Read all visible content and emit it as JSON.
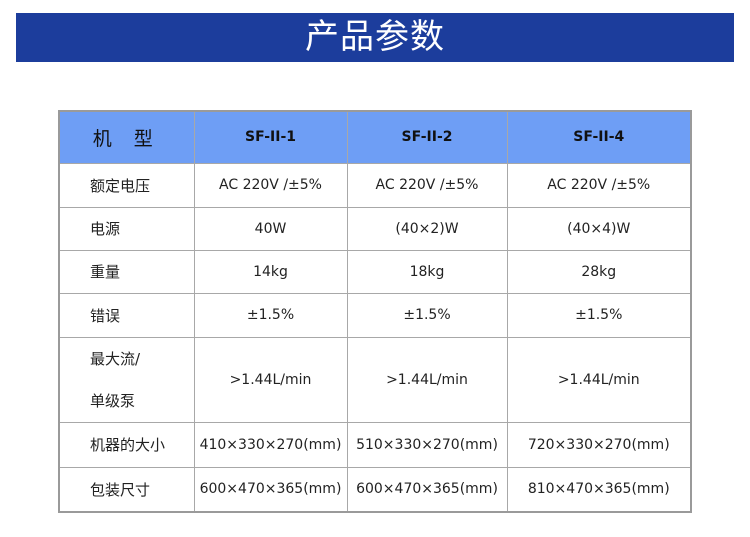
{
  "title": "产品参数",
  "table": {
    "header": [
      "机 型",
      "SF-II-1",
      "SF-II-2",
      "SF-II-4"
    ],
    "rows": [
      {
        "label": "额定电压",
        "values": [
          "AC 220V /±5%",
          "AC 220V /±5%",
          "AC 220V /±5%"
        ]
      },
      {
        "label": "电源",
        "values": [
          "40W",
          "(40×2)W",
          "(40×4)W"
        ]
      },
      {
        "label": "重量",
        "values": [
          "14kg",
          "18kg",
          "28kg"
        ]
      },
      {
        "label": "错误",
        "values": [
          "±1.5%",
          "±1.5%",
          "±1.5%"
        ]
      },
      {
        "label_line1": "最大流/",
        "label_line2": "单级泵",
        "values": [
          ">1.44L/min",
          ">1.44L/min",
          ">1.44L/min"
        ]
      },
      {
        "label": "机器的大小",
        "values": [
          "410×330×270(mm)",
          "510×330×270(mm)",
          "720×330×270(mm)"
        ]
      },
      {
        "label": "包装尺寸",
        "values": [
          "600×470×365(mm)",
          "600×470×365(mm)",
          "810×470×365(mm)"
        ]
      }
    ]
  }
}
